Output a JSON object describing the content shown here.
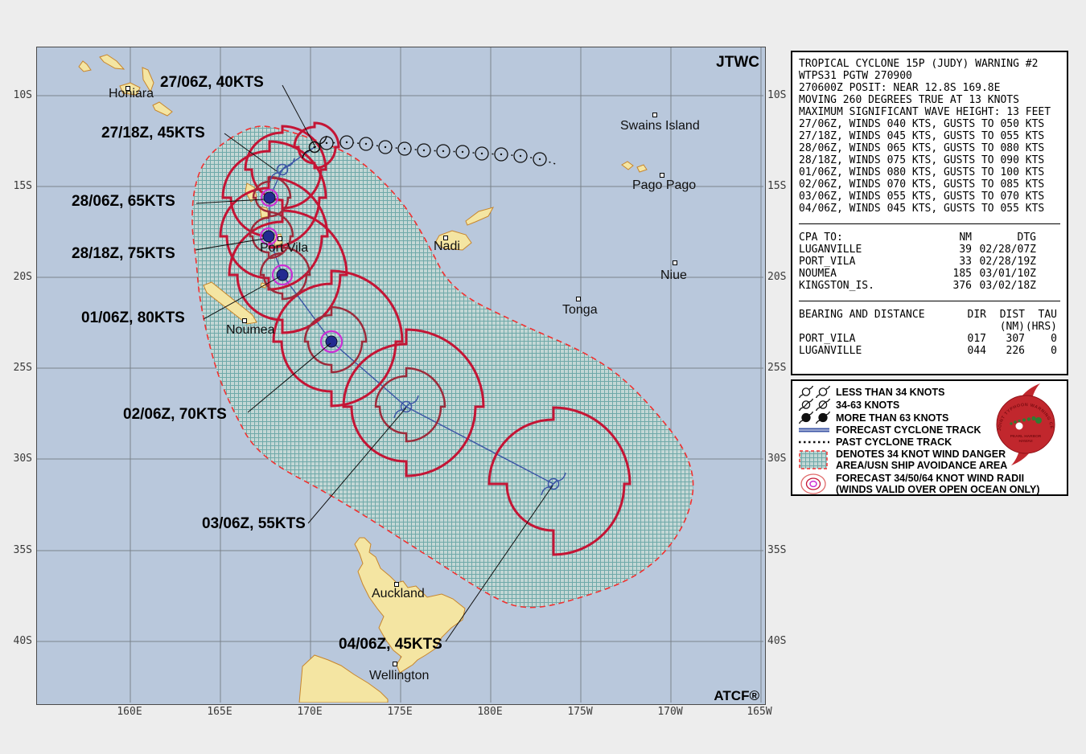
{
  "map": {
    "corner_top": "JTWC",
    "corner_bottom": "ATCF®",
    "axis": {
      "lat": [
        "10S",
        "15S",
        "20S",
        "25S",
        "30S",
        "35S",
        "40S"
      ],
      "lon": [
        "160E",
        "165E",
        "170E",
        "175E",
        "180E",
        "175W",
        "170W",
        "165W"
      ]
    },
    "cities": [
      {
        "name": "Honiara"
      },
      {
        "name": "Port Vila"
      },
      {
        "name": "Noumea"
      },
      {
        "name": "Nadi"
      },
      {
        "name": "Swains Island"
      },
      {
        "name": "Pago Pago"
      },
      {
        "name": "Niue"
      },
      {
        "name": "Tonga"
      },
      {
        "name": "Auckland"
      },
      {
        "name": "Wellington"
      }
    ],
    "track_labels": [
      {
        "text": "27/06Z, 40KTS"
      },
      {
        "text": "27/18Z, 45KTS"
      },
      {
        "text": "28/06Z, 65KTS"
      },
      {
        "text": "28/18Z, 75KTS"
      },
      {
        "text": "01/06Z, 80KTS"
      },
      {
        "text": "02/06Z, 70KTS"
      },
      {
        "text": "03/06Z, 55KTS"
      },
      {
        "text": "04/06Z, 45KTS"
      }
    ]
  },
  "warning_panel": {
    "header_lines": [
      "TROPICAL CYCLONE 15P (JUDY) WARNING #2",
      "WTPS31 PGTW 270900",
      "270600Z POSIT: NEAR 12.8S 169.8E",
      "MOVING 260 DEGREES TRUE AT 13 KNOTS",
      "MAXIMUM SIGNIFICANT WAVE HEIGHT: 13 FEET"
    ],
    "wind_lines": [
      "27/06Z, WINDS 040 KTS, GUSTS TO 050 KTS",
      "27/18Z, WINDS 045 KTS, GUSTS TO 055 KTS",
      "28/06Z, WINDS 065 KTS, GUSTS TO 080 KTS",
      "28/18Z, WINDS 075 KTS, GUSTS TO 090 KTS",
      "01/06Z, WINDS 080 KTS, GUSTS TO 100 KTS",
      "02/06Z, WINDS 070 KTS, GUSTS TO 085 KTS",
      "03/06Z, WINDS 055 KTS, GUSTS TO 070 KTS",
      "04/06Z, WINDS 045 KTS, GUSTS TO 055 KTS"
    ],
    "cpa": {
      "title": "CPA TO:",
      "col_nm": "NM",
      "col_dtg": "DTG",
      "rows": [
        {
          "name": "LUGANVILLE",
          "nm": "39",
          "dtg": "02/28/07Z"
        },
        {
          "name": "PORT_VILA",
          "nm": "33",
          "dtg": "02/28/19Z"
        },
        {
          "name": "NOUMEA",
          "nm": "185",
          "dtg": "03/01/10Z"
        },
        {
          "name": "KINGSTON_IS.",
          "nm": "376",
          "dtg": "03/02/18Z"
        }
      ]
    },
    "bearing": {
      "title": "BEARING AND DISTANCE",
      "col_dir": "DIR",
      "col_dist": "DIST",
      "col_tau": "TAU",
      "col_dist_unit": "(NM)",
      "col_tau_unit": "(HRS)",
      "rows": [
        {
          "name": "PORT_VILA",
          "dir": "017",
          "dist": "307",
          "tau": "0"
        },
        {
          "name": "LUGANVILLE",
          "dir": "044",
          "dist": "226",
          "tau": "0"
        }
      ]
    }
  },
  "legend": {
    "items": [
      {
        "label": "LESS THAN 34 KNOTS"
      },
      {
        "label": "34-63 KNOTS"
      },
      {
        "label": "MORE THAN 63 KNOTS"
      },
      {
        "label": "FORECAST CYCLONE TRACK"
      },
      {
        "label": "PAST CYCLONE TRACK"
      },
      {
        "label": "DENOTES 34 KNOT WIND DANGER",
        "label2": "AREA/USN SHIP AVOIDANCE AREA"
      },
      {
        "label": "FORECAST 34/50/64 KNOT WIND RADII",
        "label2": "(WINDS VALID OVER OPEN OCEAN ONLY)"
      }
    ],
    "seal": {
      "ring_text": "JOINT TYPHOON WARNING CENTER",
      "line1": "PEARL HARBOR",
      "line2": "HAWAII"
    }
  },
  "colors": {
    "ocean": "#b9c8dc",
    "land": "#f4e5a2",
    "danger_border": "#f23030",
    "radii_34kt": "#c41535",
    "radii_50kt": "#9e2b3b",
    "radii_64kt": "#cc2fd4",
    "forecast_track": "#3c55a5",
    "past_track": "#101010"
  }
}
